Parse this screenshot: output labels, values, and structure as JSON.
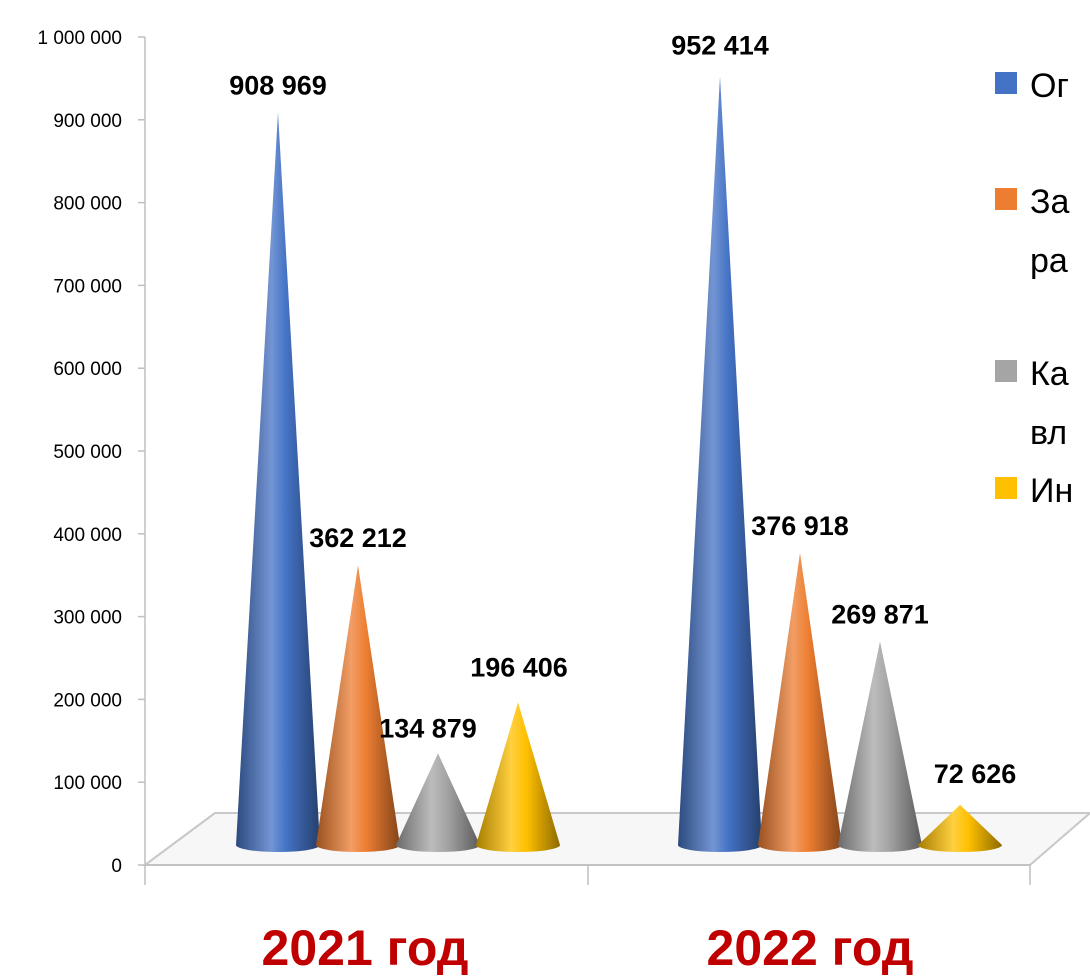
{
  "chart_data": {
    "type": "bar",
    "shape": "cone",
    "categories": [
      "2021 год",
      "2022 год"
    ],
    "series": [
      {
        "name": "Ог",
        "color": "#4472c4",
        "values": [
          908969,
          952414
        ]
      },
      {
        "name": "За",
        "color": "#ed7d31",
        "values": [
          362212,
          376918
        ]
      },
      {
        "name": "Ка",
        "color": "#a5a5a5",
        "values": [
          134879,
          269871
        ]
      },
      {
        "name": "Ин",
        "color": "#ffc000",
        "values": [
          196406,
          72626
        ]
      }
    ],
    "data_labels": [
      [
        "908 969",
        "952 414"
      ],
      [
        "362 212",
        "376 918"
      ],
      [
        "134 879",
        "269 871"
      ],
      [
        "196 406",
        "72 626"
      ]
    ],
    "legend_lines": [
      [
        "Ог"
      ],
      [
        "За",
        "ра"
      ],
      [
        "Ка",
        "вл"
      ],
      [
        "Ин"
      ]
    ],
    "ylim": [
      0,
      1000000
    ],
    "yticks": [
      0,
      100000,
      200000,
      300000,
      400000,
      500000,
      600000,
      700000,
      800000,
      900000,
      1000000
    ],
    "ytick_labels": [
      "0",
      "100 000",
      "200 000",
      "300 000",
      "400 000",
      "500 000",
      "600 000",
      "700 000",
      "800 000",
      "900 000",
      "1 000 000"
    ],
    "legend_position": "right",
    "grid": false,
    "category_label_color": "#c00000"
  }
}
